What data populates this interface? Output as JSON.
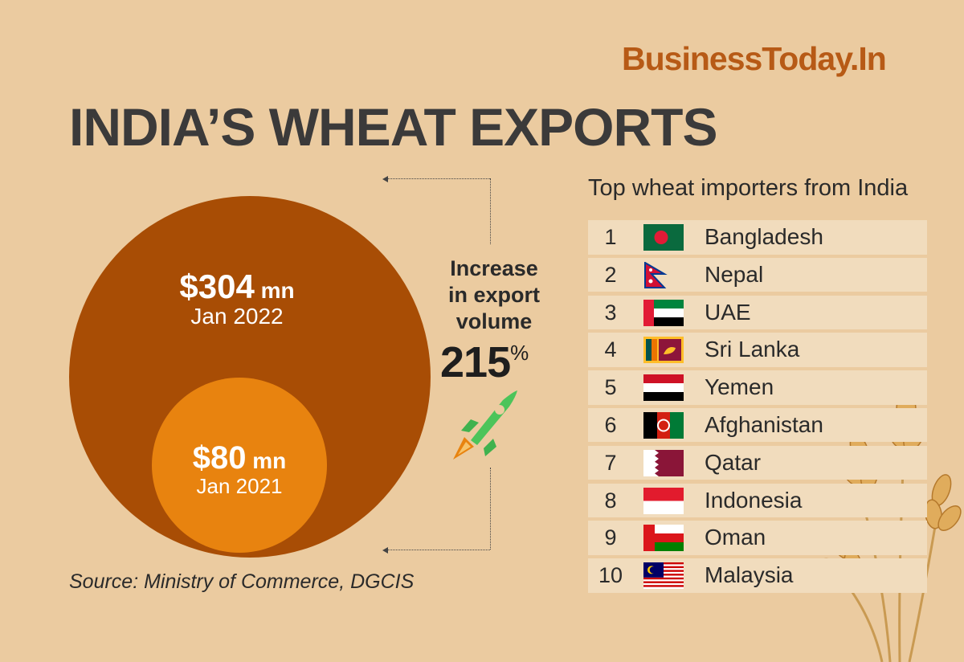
{
  "brand": "BusinessToday.In",
  "title": "INDIA’S WHEAT EXPORTS",
  "chart_data": [
    {
      "type": "bubble",
      "categories": [
        "Jan 2022",
        "Jan 2021"
      ],
      "values": [
        304,
        80
      ],
      "value_labels": [
        "$304 mn",
        "$80 mn"
      ],
      "unit": "$ mn"
    },
    {
      "type": "table",
      "title": "Top wheat importers from India",
      "columns": [
        "rank",
        "flag",
        "country"
      ],
      "rows": [
        {
          "rank": "1",
          "country": "Bangladesh",
          "flag": "bangladesh-flag-icon"
        },
        {
          "rank": "2",
          "country": "Nepal",
          "flag": "nepal-flag-icon"
        },
        {
          "rank": "3",
          "country": "UAE",
          "flag": "uae-flag-icon"
        },
        {
          "rank": "4",
          "country": "Sri Lanka",
          "flag": "sri-lanka-flag-icon"
        },
        {
          "rank": "5",
          "country": "Yemen",
          "flag": "yemen-flag-icon"
        },
        {
          "rank": "6",
          "country": "Afghanistan",
          "flag": "afghanistan-flag-icon"
        },
        {
          "rank": "7",
          "country": "Qatar",
          "flag": "qatar-flag-icon"
        },
        {
          "rank": "8",
          "country": "Indonesia",
          "flag": "indonesia-flag-icon"
        },
        {
          "rank": "9",
          "country": "Oman",
          "flag": "oman-flag-icon"
        },
        {
          "rank": "10",
          "country": "Malaysia",
          "flag": "malaysia-flag-icon"
        }
      ]
    }
  ],
  "bubbles": {
    "big": {
      "amount": "$304",
      "unit": " mn",
      "date": "Jan 2022"
    },
    "small": {
      "amount": "$80",
      "unit": " mn",
      "date": "Jan 2021"
    }
  },
  "increase": {
    "label_lines": [
      "Increase",
      "in export",
      "volume"
    ],
    "value": "215",
    "suffix": "%"
  },
  "source": "Source: Ministry of Commerce, DGCIS",
  "colors": {
    "background": "#ebcba0",
    "brand": "#b75a16",
    "big_circle": "#a84d05",
    "small_circle": "#e8830f",
    "row_bg": "#f1dcbd",
    "title_text": "#3b3a3a"
  },
  "icons": [
    "rocket-icon",
    "wheat-stalks-illustration"
  ]
}
